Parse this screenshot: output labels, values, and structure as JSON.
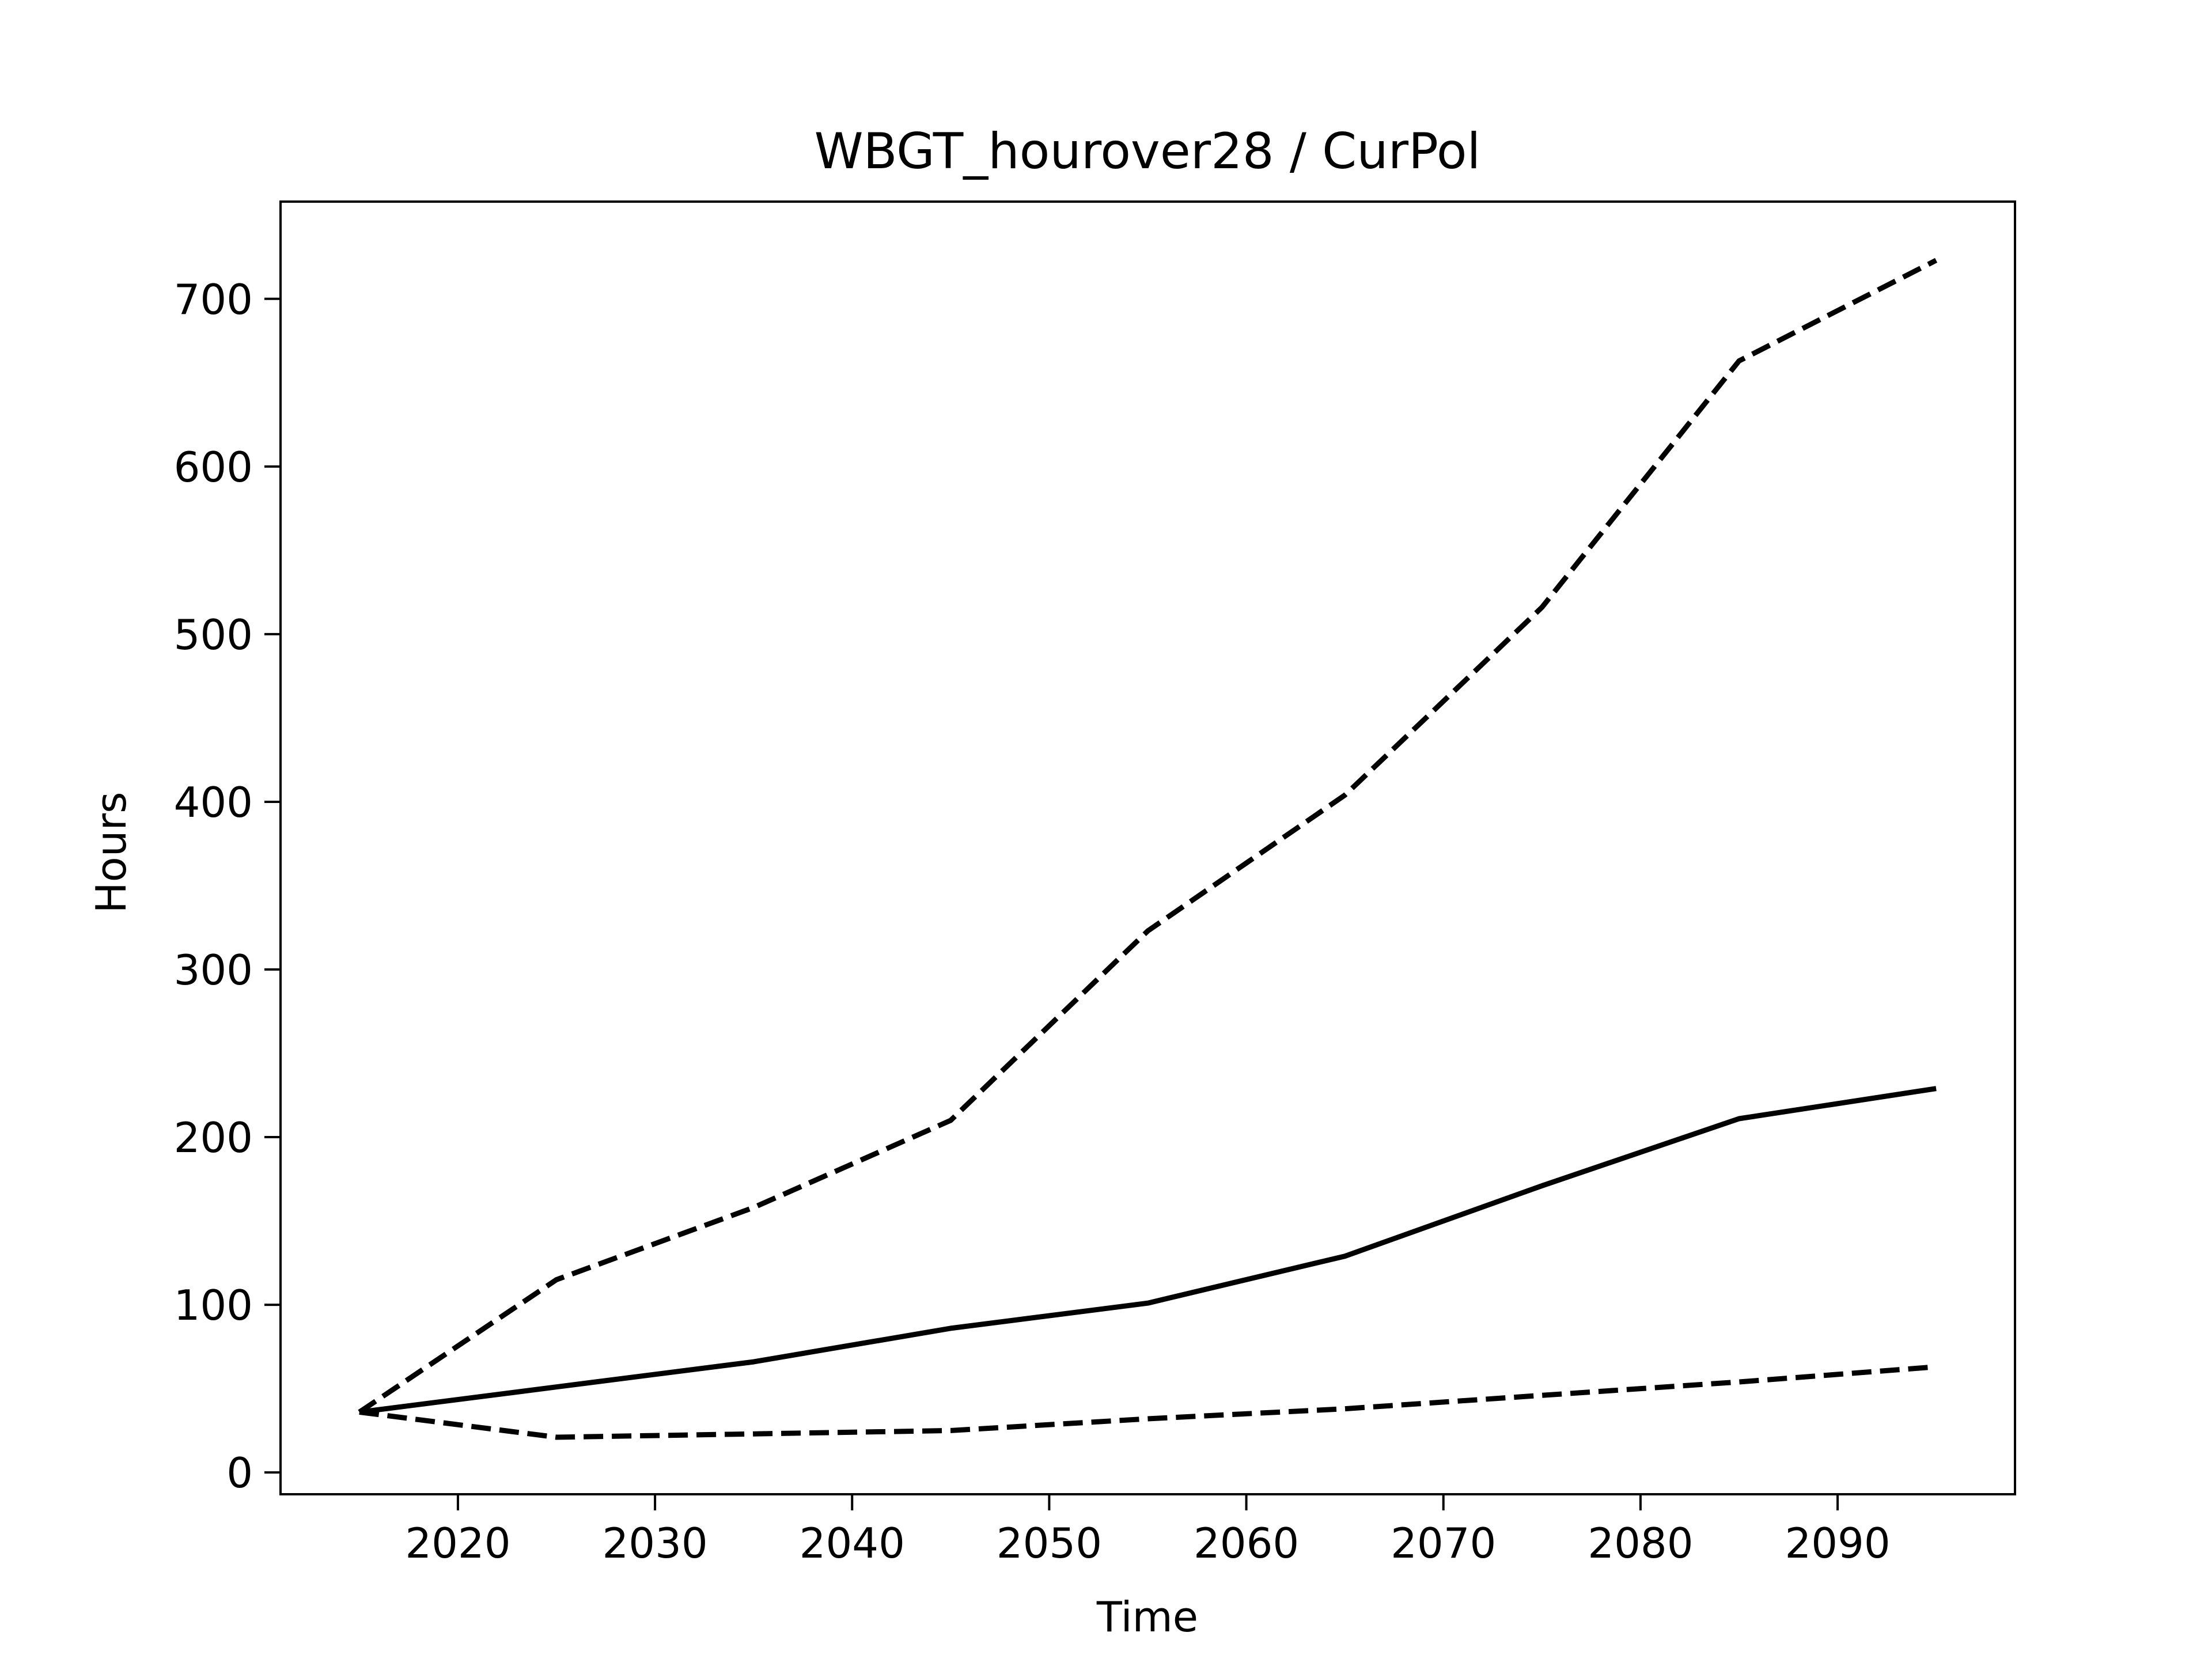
{
  "chart_data": {
    "type": "line",
    "title": "WBGT_hourover28 / CurPol",
    "xlabel": "Time",
    "ylabel": "Hours",
    "x": [
      2015,
      2025,
      2035,
      2045,
      2055,
      2065,
      2075,
      2085,
      2095
    ],
    "xlim": [
      2011,
      2099
    ],
    "ylim": [
      -13,
      758
    ],
    "xticks": [
      2020,
      2030,
      2040,
      2050,
      2060,
      2070,
      2080,
      2090
    ],
    "yticks": [
      0,
      100,
      200,
      300,
      400,
      500,
      600,
      700
    ],
    "grid": false,
    "series": [
      {
        "style": "dashed",
        "color": "#000000",
        "values": [
          36,
          115,
          158,
          210,
          323,
          404,
          516,
          663,
          723
        ]
      },
      {
        "style": "solid",
        "color": "#000000",
        "values": [
          36,
          51,
          66,
          86,
          101,
          129,
          171,
          211,
          229
        ]
      },
      {
        "style": "dashed",
        "color": "#000000",
        "values": [
          36,
          21,
          23,
          25,
          32,
          38,
          46,
          54,
          63
        ]
      }
    ]
  }
}
